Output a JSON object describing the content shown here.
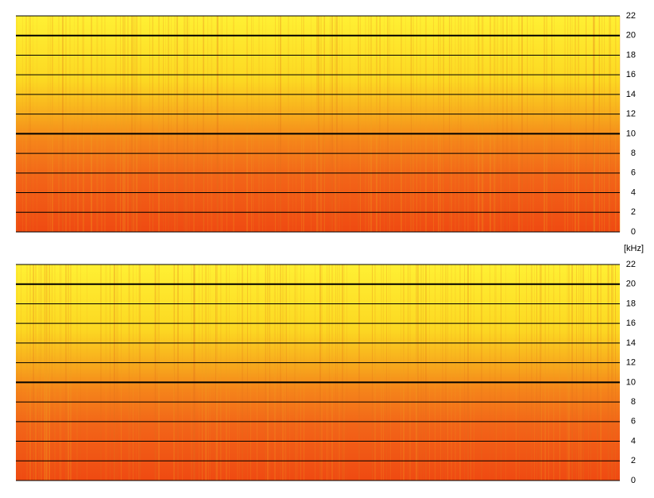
{
  "axis_label": "[kHz]",
  "chart_data": [
    {
      "type": "spectrogram",
      "ylim": [
        0,
        22
      ],
      "yticks": [
        0,
        2,
        4,
        6,
        8,
        10,
        12,
        14,
        16,
        18,
        20,
        22
      ],
      "grid": true,
      "bold_grid": [
        10,
        20
      ]
    },
    {
      "type": "spectrogram",
      "ylim": [
        0,
        22
      ],
      "yticks": [
        0,
        2,
        4,
        6,
        8,
        10,
        12,
        14,
        16,
        18,
        20,
        22
      ],
      "grid": true,
      "bold_grid": [
        10,
        20
      ]
    }
  ]
}
